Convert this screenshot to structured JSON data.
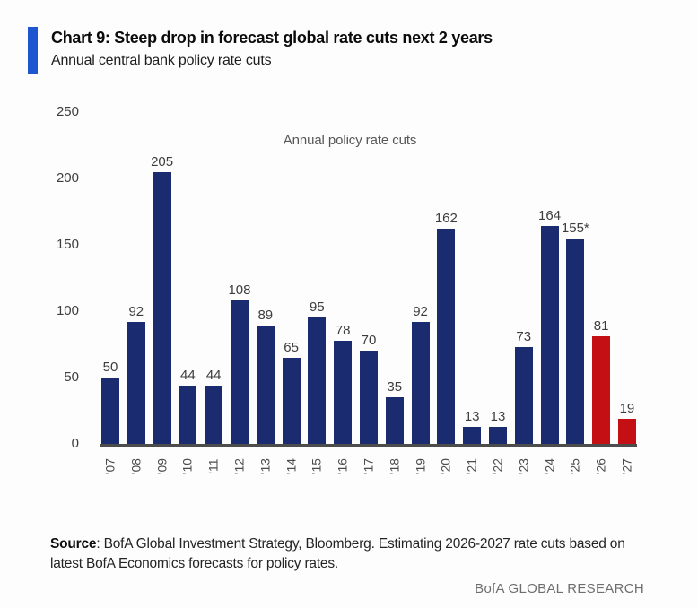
{
  "header": {
    "title": "Chart 9: Steep drop in forecast global rate cuts next 2 years",
    "subtitle": "Annual central bank policy rate cuts",
    "accent_color": "#1d56cf"
  },
  "chart_data": {
    "type": "bar",
    "title": "Annual policy rate cuts",
    "xlabel": "",
    "ylabel": "",
    "categories": [
      "'07",
      "'08",
      "'09",
      "'10",
      "'11",
      "'12",
      "'13",
      "'14",
      "'15",
      "'16",
      "'17",
      "'18",
      "'19",
      "'20",
      "'21",
      "'22",
      "'23",
      "'24",
      "'25",
      "'26",
      "'27"
    ],
    "values": [
      50,
      92,
      205,
      44,
      44,
      108,
      89,
      65,
      95,
      78,
      70,
      35,
      92,
      162,
      13,
      13,
      73,
      164,
      155,
      81,
      19
    ],
    "labels": [
      "50",
      "92",
      "205",
      "44",
      "44",
      "108",
      "89",
      "65",
      "95",
      "78",
      "70",
      "35",
      "92",
      "162",
      "13",
      "13",
      "73",
      "164",
      "155*",
      "81",
      "19"
    ],
    "ylim": [
      0,
      250
    ],
    "yticks": [
      250,
      200,
      150,
      100,
      50,
      0
    ],
    "grid": false,
    "legend": "none",
    "forecast_start_index": 19,
    "colors": {
      "historical": "#1a2b6f",
      "forecast": "#c40f15",
      "axis_line": "#4c4c4c",
      "label_text": "#3d3d3d"
    }
  },
  "footer": {
    "source_label": "Source",
    "source_line1": ": BofA Global Investment Strategy, Bloomberg. Estimating 2026-2027 rate cuts based on",
    "source_line2": "latest BofA Economics forecasts for policy rates.",
    "brand": "BofA GLOBAL RESEARCH"
  }
}
